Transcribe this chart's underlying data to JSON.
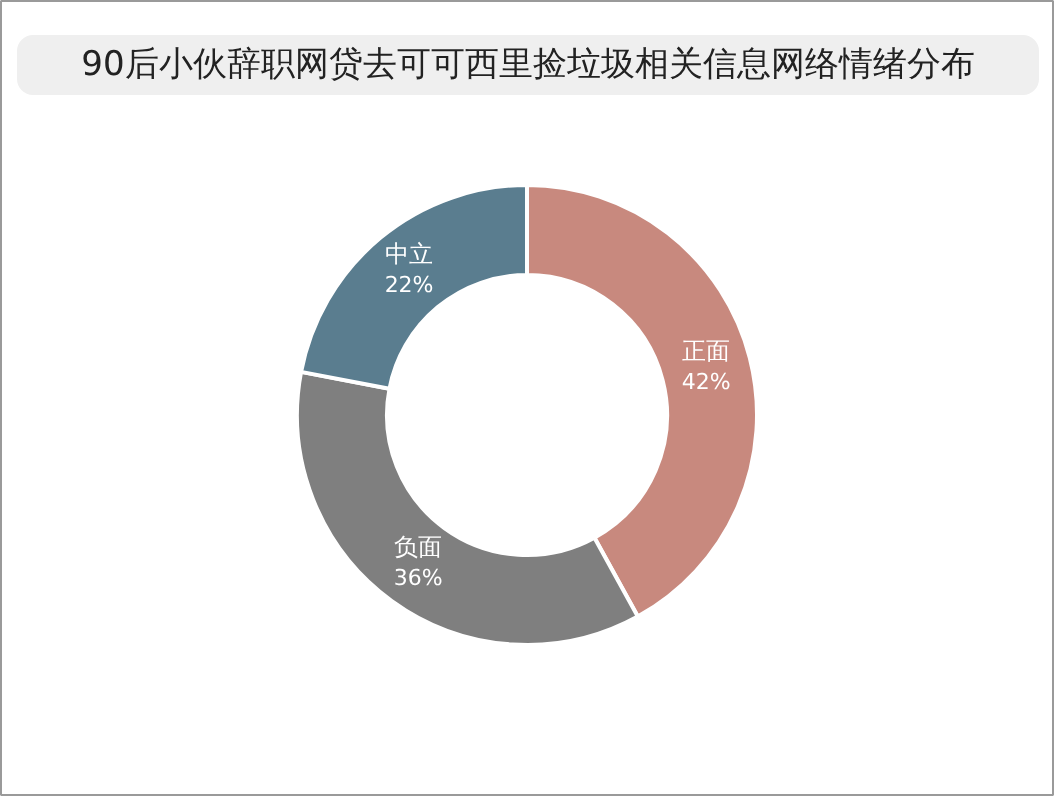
{
  "chart_data": {
    "type": "donut",
    "title": "90后小伙辞职网贷去可可西里捡垃圾相关信息网络情绪分布",
    "categories": [
      "正面",
      "负面",
      "中立"
    ],
    "values": [
      42,
      36,
      22
    ],
    "colors": [
      "#c8897e",
      "#7f7f7f",
      "#5a7d8f"
    ],
    "value_labels": [
      "42%",
      "36%",
      "22%"
    ]
  }
}
